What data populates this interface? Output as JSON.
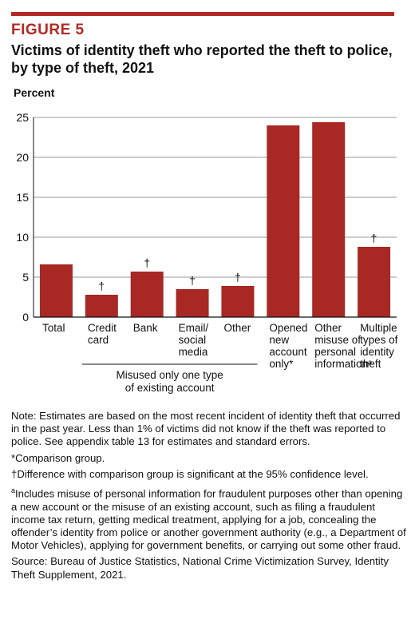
{
  "figure": {
    "label": "FIGURE 5",
    "title": "Victims of identity theft who reported the theft to police, by type of theft, 2021",
    "accent_color": "#b22a25"
  },
  "chart_data": {
    "type": "bar",
    "ylabel": "Percent",
    "xlabel": "",
    "ylim": [
      0,
      25
    ],
    "yticks": [
      0,
      5,
      10,
      15,
      20,
      25
    ],
    "grid": true,
    "bar_color": "#a82823",
    "categories": [
      "Total",
      "Credit card",
      "Bank",
      "Email/ social media",
      "Other",
      "Opened new account only*",
      "Other misuse of personal informationᵃ",
      "Multiple types of identity theft"
    ],
    "category_lines": [
      [
        "Total"
      ],
      [
        "Credit",
        "card"
      ],
      [
        "Bank"
      ],
      [
        "Email/",
        "social",
        "media"
      ],
      [
        "Other"
      ],
      [
        "Opened",
        "new",
        "account",
        "only*"
      ],
      [
        "Other",
        "misuse of",
        "personal",
        "informationᵃ"
      ],
      [
        "Multiple",
        "types of",
        "identity",
        "theft"
      ]
    ],
    "values": [
      6.6,
      2.8,
      5.7,
      3.5,
      3.9,
      24.0,
      24.4,
      8.8
    ],
    "significance_markers": [
      "",
      "†",
      "†",
      "†",
      "†",
      "",
      "",
      "†"
    ],
    "group_label": {
      "lines": [
        "Misused only one type",
        "of existing account"
      ],
      "spans_categories": [
        1,
        4
      ]
    }
  },
  "notes": [
    "Note: Estimates are based on the most recent incident of identity theft that occurred in the past year. Less than 1% of victims did not know if the theft was reported to police. See appendix table 13 for estimates and standard errors.",
    "*Comparison group.",
    "†Difference with comparison group is significant at the 95% confidence level.",
    "Includes misuse of personal information for fraudulent purposes other than opening a new account or the misuse of an existing account, such as filing a fraudulent income tax return, getting medical treatment, applying for a job, concealing the offender’s identity from police or another government authority (e.g., a Department of Motor Vehicles), applying for government benefits, or carrying out some other fraud.",
    "Source: Bureau of Justice Statistics, National Crime Victimization Survey, Identity Theft Supplement, 2021."
  ],
  "footnote_a_marker": "a"
}
